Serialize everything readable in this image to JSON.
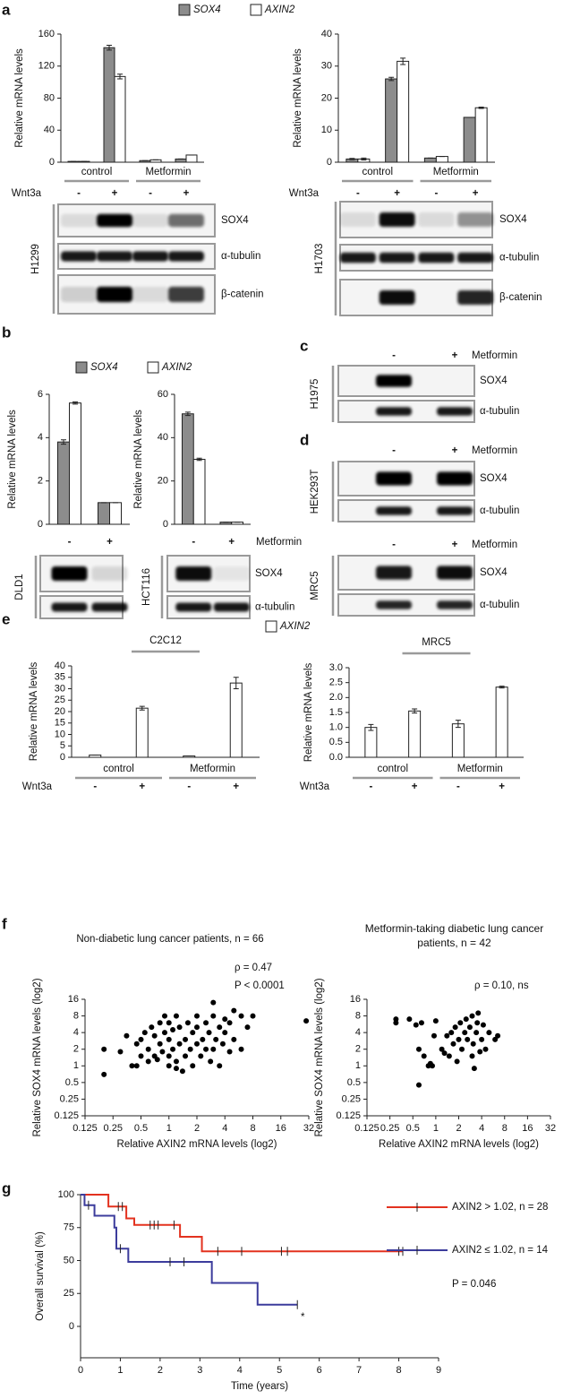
{
  "panels": [
    "a",
    "b",
    "c",
    "d",
    "e",
    "f",
    "g"
  ],
  "chart_data": [
    {
      "type": "bar",
      "ylabel": "Relative mRNA levels",
      "categories": [
        "-",
        "+",
        "-",
        "+"
      ],
      "groups": [
        "control",
        "Metformin"
      ],
      "row_label": "Wnt3a",
      "series": [
        {
          "name": "SOX4",
          "color": "#8c8c8c",
          "values": [
            1,
            143,
            2,
            4
          ],
          "errors": [
            0,
            3,
            0,
            0
          ]
        },
        {
          "name": "AXIN2",
          "color": "#ffffff",
          "values": [
            1,
            107,
            3,
            9
          ],
          "errors": [
            0,
            3,
            0,
            0
          ]
        }
      ],
      "ylim": [
        0,
        160
      ],
      "yticks": [
        0,
        40,
        80,
        120,
        160
      ]
    },
    {
      "type": "bar",
      "ylabel": "Relative mRNA levels",
      "categories": [
        "-",
        "+",
        "-",
        "+"
      ],
      "groups": [
        "control",
        "Metformin"
      ],
      "row_label": "Wnt3a",
      "series": [
        {
          "color": "#8c8c8c",
          "values": [
            1,
            26,
            1.3,
            14
          ],
          "errors": [
            0.2,
            0.5,
            0,
            0
          ]
        },
        {
          "color": "#ffffff",
          "values": [
            1,
            31.5,
            1.8,
            17
          ],
          "errors": [
            0.3,
            1,
            0,
            0.2
          ]
        }
      ],
      "ylim": [
        0,
        40
      ],
      "yticks": [
        0,
        10,
        20,
        30,
        40
      ]
    },
    {
      "type": "bar",
      "ylabel": "Relative mRNA levels",
      "categories": [
        "-",
        "+"
      ],
      "series": [
        {
          "name": "SOX4",
          "color": "#8c8c8c",
          "values": [
            3.8,
            1
          ],
          "errors": [
            0.1,
            0
          ]
        },
        {
          "name": "AXIN2",
          "color": "#ffffff",
          "values": [
            5.6,
            1
          ],
          "errors": [
            0.05,
            0
          ]
        }
      ],
      "ylim": [
        0,
        6
      ],
      "yticks": [
        0,
        2,
        4,
        6
      ]
    },
    {
      "type": "bar",
      "ylabel": "Relative mRNA levels",
      "categories": [
        "-",
        "+"
      ],
      "row_label": "Metformin",
      "series": [
        {
          "color": "#8c8c8c",
          "values": [
            51,
            1
          ],
          "errors": [
            0.8,
            0
          ]
        },
        {
          "color": "#ffffff",
          "values": [
            30,
            1
          ],
          "errors": [
            0.5,
            0
          ]
        }
      ],
      "ylim": [
        0,
        60
      ],
      "yticks": [
        0,
        20,
        40,
        60
      ]
    },
    {
      "type": "bar",
      "title": "C2C12",
      "ylabel": "Relative mRNA levels",
      "categories": [
        "-",
        "+",
        "-",
        "+"
      ],
      "groups": [
        "control",
        "Metformin"
      ],
      "row_label": "Wnt3a",
      "series": [
        {
          "name": "AXIN2",
          "color": "#ffffff",
          "values": [
            1,
            21.5,
            0.6,
            32.5
          ],
          "errors": [
            0,
            0.8,
            0,
            2.5
          ]
        }
      ],
      "ylim": [
        0,
        40
      ],
      "yticks": [
        0,
        5,
        10,
        15,
        20,
        25,
        30,
        35,
        40
      ]
    },
    {
      "type": "bar",
      "title": "MRC5",
      "ylabel": "Relative mRNA levels",
      "categories": [
        "-",
        "+",
        "-",
        "+"
      ],
      "groups": [
        "control",
        "Metformin"
      ],
      "row_label": "Wnt3a",
      "series": [
        {
          "color": "#ffffff",
          "values": [
            1.0,
            1.55,
            1.12,
            2.35
          ],
          "errors": [
            0.1,
            0.07,
            0.12,
            0.03
          ]
        }
      ],
      "ylim": [
        0,
        3
      ],
      "yticks": [
        {
          "value": 0,
          "label": "0.0"
        },
        0.5,
        {
          "value": 1,
          "label": "1.0"
        },
        1.5,
        {
          "value": 2,
          "label": "2.0"
        },
        2.5,
        {
          "value": 3,
          "label": "3.0"
        }
      ]
    },
    {
      "type": "scatter",
      "title": "Non-diabetic lung cancer patients, n = 66",
      "annotations": [
        "ρ = 0.47",
        "P < 0.0001"
      ],
      "xlabel": "Relative AXIN2 mRNA levels (log2)",
      "ylabel": "Relative SOX4 mRNA levels (log2)",
      "log_scale": true,
      "color": "#000000",
      "x": [
        0.2,
        0.2,
        0.3,
        0.35,
        0.4,
        0.45,
        0.45,
        0.5,
        0.5,
        0.55,
        0.6,
        0.6,
        0.65,
        0.7,
        0.7,
        0.75,
        0.8,
        0.8,
        0.85,
        0.9,
        0.9,
        1,
        1,
        1,
        1,
        1.1,
        1.1,
        1.2,
        1.2,
        1.3,
        1.3,
        1.4,
        1.5,
        1.5,
        1.6,
        1.7,
        1.8,
        1.8,
        2,
        2,
        2,
        2.2,
        2.3,
        2.5,
        2.5,
        2.7,
        2.8,
        3,
        3,
        3,
        3.2,
        3.5,
        3.5,
        3.8,
        4,
        4,
        4.5,
        4.5,
        5,
        5,
        6,
        6,
        7,
        8,
        30,
        1.2
      ],
      "values": [
        0.7,
        2,
        1.8,
        3.5,
        1,
        1,
        2.5,
        1.5,
        3,
        4,
        1.2,
        2,
        5,
        1.5,
        3.5,
        1.3,
        2.5,
        6,
        1.8,
        4,
        8,
        1,
        1.5,
        3,
        6,
        2,
        4.5,
        1.2,
        8,
        2.5,
        5,
        0.8,
        1.5,
        3,
        6,
        2,
        4,
        1,
        2.5,
        5,
        8,
        1.5,
        3,
        2,
        6,
        4,
        1.2,
        2,
        8,
        14,
        3,
        5,
        1,
        2.5,
        7,
        4,
        1.8,
        6,
        3,
        10,
        8,
        2,
        5,
        8,
        6.5,
        0.9
      ],
      "xlim": [
        0.125,
        32
      ],
      "ylim": [
        0.125,
        16
      ],
      "xticks": [
        0.125,
        0.25,
        0.5,
        1,
        2,
        4,
        8,
        16,
        32
      ],
      "yticks": [
        0.125,
        0.25,
        0.5,
        1,
        2,
        4,
        8,
        16
      ]
    },
    {
      "type": "scatter",
      "title": "Metformin-taking diabetic lung cancer patients, n = 42",
      "annotations": [
        "ρ = 0.10, ns"
      ],
      "xlabel": "Relative AXIN2 mRNA levels (log2)",
      "ylabel": "Relative SOX4 mRNA levels (log2)",
      "log_scale": true,
      "color": "#000000",
      "x": [
        0.3,
        0.3,
        0.45,
        0.55,
        0.6,
        0.6,
        0.65,
        0.7,
        0.8,
        0.85,
        0.9,
        0.95,
        1,
        1.2,
        1.3,
        1.4,
        1.5,
        1.6,
        1.7,
        1.8,
        1.9,
        2,
        2.1,
        2.2,
        2.4,
        2.5,
        2.6,
        2.8,
        3,
        3,
        3.1,
        3.2,
        3.4,
        3.5,
        3.6,
        3.8,
        4,
        4.2,
        4.5,
        5,
        6,
        6.5
      ],
      "values": [
        7,
        6,
        7,
        5.5,
        2,
        0.45,
        6,
        1.5,
        1,
        1.1,
        1,
        3.5,
        6.5,
        2,
        1.7,
        3.5,
        1.5,
        4,
        2.5,
        5,
        1.2,
        3,
        6,
        2,
        4,
        7,
        3,
        5,
        1.5,
        8,
        2.5,
        0.9,
        4,
        6,
        9,
        1.8,
        3,
        5.5,
        2,
        4,
        3,
        3.5
      ],
      "xlim": [
        0.125,
        32
      ],
      "ylim": [
        0.125,
        16
      ],
      "xticks": [
        0.125,
        0.25,
        0.5,
        1,
        2,
        4,
        8,
        16,
        32
      ],
      "yticks": [
        0.125,
        0.25,
        0.5,
        1,
        2,
        4,
        8,
        16
      ]
    },
    {
      "type": "line",
      "step": true,
      "xlabel": "Time (years)",
      "ylabel": "Overall survival (%)",
      "annotations": [
        "P = 0.046",
        "*"
      ],
      "series": [
        {
          "name": "AXIN2 > 1.02, n = 28",
          "color": "#e3321f",
          "x": [
            0,
            0.7,
            1.15,
            1.35,
            2.5,
            3.05,
            8.1
          ],
          "values": [
            100,
            91,
            82,
            77,
            68,
            57,
            57
          ],
          "censored": [
            0.95,
            1.05,
            1.75,
            1.85,
            1.95,
            2.35,
            3.45,
            4.05,
            5.05,
            5.2,
            8.0,
            8.1
          ]
        },
        {
          "name": "AXIN2 ≤ 1.02, n = 14",
          "color": "#3c3c9c",
          "x": [
            0,
            0.1,
            0.35,
            0.85,
            0.9,
            1.2,
            3.3,
            4.45,
            5.45
          ],
          "values": [
            100,
            92,
            84,
            75,
            59,
            49,
            33,
            16.5,
            16.5
          ],
          "censored": [
            0.2,
            1.0,
            2.25,
            2.6,
            5.45
          ]
        }
      ],
      "xlim": [
        0,
        9
      ],
      "xticks": [
        0,
        1,
        2,
        3,
        4,
        5,
        6,
        7,
        8,
        9
      ],
      "ylim": [
        0,
        100
      ],
      "yticks": [
        0,
        25,
        50,
        75,
        100
      ],
      "legend": "upper right"
    }
  ],
  "blots": [
    {
      "cell_line": "H1299",
      "bands": [
        "SOX4",
        "α-tubulin",
        "β-catenin"
      ]
    },
    {
      "cell_line": "H1703",
      "bands": [
        "SOX4",
        "α-tubulin",
        "β-catenin"
      ]
    },
    {
      "cell_line": "DLD1"
    },
    {
      "cell_line": "HCT116",
      "bands": [
        "SOX4",
        "α-tubulin"
      ]
    },
    {
      "cell_line": "H1975",
      "lanes": [
        "-",
        "+"
      ],
      "treatment": "Metformin",
      "bands": [
        "SOX4",
        "α-tubulin"
      ]
    },
    {
      "cell_line": "HEK293T",
      "lanes": [
        "-",
        "+"
      ],
      "treatment": "Metformin",
      "bands": [
        "SOX4",
        "α-tubulin"
      ]
    },
    {
      "cell_line": "MRC5",
      "lanes": [
        "-",
        "+"
      ],
      "treatment": "Metformin",
      "bands": [
        "SOX4",
        "α-tubulin"
      ]
    }
  ]
}
